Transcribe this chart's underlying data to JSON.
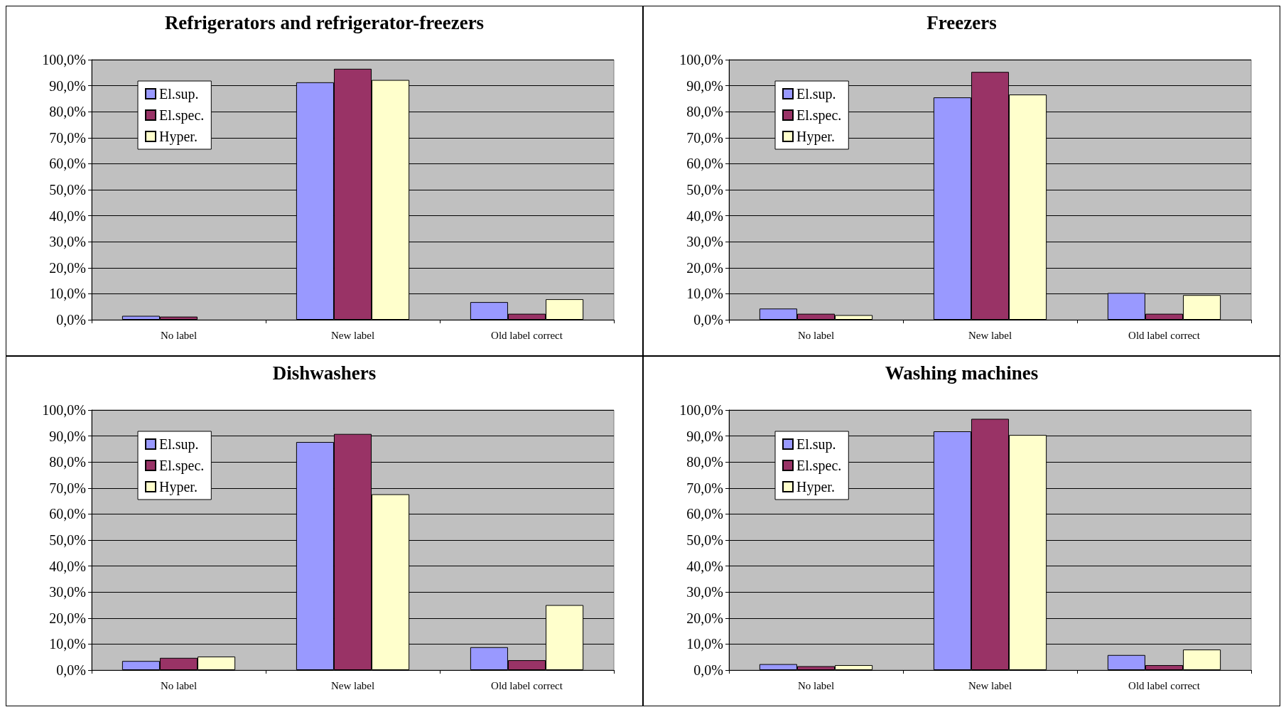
{
  "chart_data": [
    {
      "type": "bar",
      "title": "Refrigerators and refrigerator-freezers",
      "categories": [
        "No label",
        "New label",
        "Old label correct"
      ],
      "series": [
        {
          "name": "El.sup.",
          "color": "#9999ff",
          "values": [
            1.5,
            91.3,
            6.8
          ]
        },
        {
          "name": "El.spec.",
          "color": "#993366",
          "values": [
            1.2,
            96.5,
            2.3
          ]
        },
        {
          "name": "Hyper.",
          "color": "#ffffcc",
          "values": [
            null,
            92.2,
            7.9
          ]
        }
      ],
      "ylim": [
        0,
        100
      ],
      "yticks": [
        {
          "value": 0,
          "label": "0,0%"
        },
        {
          "value": 10,
          "label": "10,0%"
        },
        {
          "value": 20,
          "label": "20,0%"
        },
        {
          "value": 30,
          "label": "30,0%"
        },
        {
          "value": 40,
          "label": "40,0%"
        },
        {
          "value": 50,
          "label": "50,0%"
        },
        {
          "value": 60,
          "label": "60,0%"
        },
        {
          "value": 70,
          "label": "70,0%"
        },
        {
          "value": 80,
          "label": "80,0%"
        },
        {
          "value": 90,
          "label": "90,0%"
        },
        {
          "value": 100,
          "label": "100,0%"
        }
      ],
      "grid": "y",
      "legend": "top left"
    },
    {
      "type": "bar",
      "title": "Freezers",
      "categories": [
        "No label",
        "New label",
        "Old label correct"
      ],
      "series": [
        {
          "name": "El.sup.",
          "color": "#9999ff",
          "values": [
            4.3,
            85.5,
            10.3
          ]
        },
        {
          "name": "El.spec.",
          "color": "#993366",
          "values": [
            2.3,
            95.3,
            2.3
          ]
        },
        {
          "name": "Hyper.",
          "color": "#ffffcc",
          "values": [
            1.8,
            86.6,
            9.5
          ]
        }
      ],
      "ylim": [
        0,
        100
      ],
      "yticks": [
        {
          "value": 0,
          "label": "0,0%"
        },
        {
          "value": 10,
          "label": "10,0%"
        },
        {
          "value": 20,
          "label": "20,0%"
        },
        {
          "value": 30,
          "label": "30,0%"
        },
        {
          "value": 40,
          "label": "40,0%"
        },
        {
          "value": 50,
          "label": "50,0%"
        },
        {
          "value": 60,
          "label": "60,0%"
        },
        {
          "value": 70,
          "label": "70,0%"
        },
        {
          "value": 80,
          "label": "80,0%"
        },
        {
          "value": 90,
          "label": "90,0%"
        },
        {
          "value": 100,
          "label": "100,0%"
        }
      ],
      "grid": "y",
      "legend": "top left"
    },
    {
      "type": "bar",
      "title": "Dishwashers",
      "categories": [
        "No label",
        "New label",
        "Old label correct"
      ],
      "series": [
        {
          "name": "El.sup.",
          "color": "#9999ff",
          "values": [
            3.5,
            87.7,
            8.8
          ]
        },
        {
          "name": "El.spec.",
          "color": "#993366",
          "values": [
            4.7,
            90.8,
            3.8
          ]
        },
        {
          "name": "Hyper.",
          "color": "#ffffcc",
          "values": [
            5.2,
            67.6,
            25.0
          ]
        }
      ],
      "ylim": [
        0,
        100
      ],
      "yticks": [
        {
          "value": 0,
          "label": "0,0%"
        },
        {
          "value": 10,
          "label": "10,0%"
        },
        {
          "value": 20,
          "label": "20,0%"
        },
        {
          "value": 30,
          "label": "30,0%"
        },
        {
          "value": 40,
          "label": "40,0%"
        },
        {
          "value": 50,
          "label": "50,0%"
        },
        {
          "value": 60,
          "label": "60,0%"
        },
        {
          "value": 70,
          "label": "70,0%"
        },
        {
          "value": 80,
          "label": "80,0%"
        },
        {
          "value": 90,
          "label": "90,0%"
        },
        {
          "value": 100,
          "label": "100,0%"
        }
      ],
      "grid": "y",
      "legend": "top left"
    },
    {
      "type": "bar",
      "title": "Washing machines",
      "categories": [
        "No label",
        "New label",
        "Old label correct"
      ],
      "series": [
        {
          "name": "El.sup.",
          "color": "#9999ff",
          "values": [
            2.3,
            91.8,
            5.8
          ]
        },
        {
          "name": "El.spec.",
          "color": "#993366",
          "values": [
            1.5,
            96.6,
            1.9
          ]
        },
        {
          "name": "Hyper.",
          "color": "#ffffcc",
          "values": [
            1.9,
            90.4,
            7.9
          ]
        }
      ],
      "ylim": [
        0,
        100
      ],
      "yticks": [
        {
          "value": 0,
          "label": "0,0%"
        },
        {
          "value": 10,
          "label": "10,0%"
        },
        {
          "value": 20,
          "label": "20,0%"
        },
        {
          "value": 30,
          "label": "30,0%"
        },
        {
          "value": 40,
          "label": "40,0%"
        },
        {
          "value": 50,
          "label": "50,0%"
        },
        {
          "value": 60,
          "label": "60,0%"
        },
        {
          "value": 70,
          "label": "70,0%"
        },
        {
          "value": 80,
          "label": "80,0%"
        },
        {
          "value": 90,
          "label": "90,0%"
        },
        {
          "value": 100,
          "label": "100,0%"
        }
      ],
      "grid": "y",
      "legend": "top left"
    }
  ]
}
